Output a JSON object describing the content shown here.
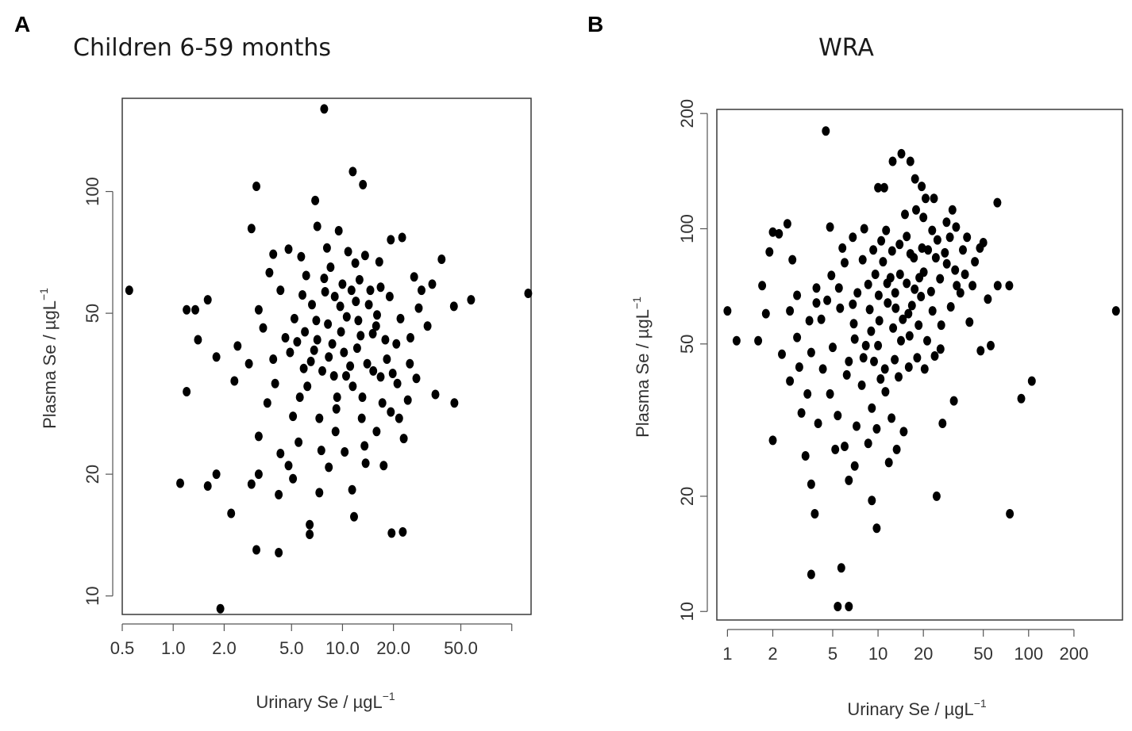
{
  "chart_data": [
    {
      "type": "scatter",
      "panel": "A",
      "title": "Children 6-59 months",
      "xlabel": "Urinary Se / µgL",
      "xlabel_sup": "−1",
      "ylabel": "Plasma Se / µgL",
      "ylabel_sup": "−1",
      "xscale": "log",
      "yscale": "log",
      "xlim": [
        0.5,
        130
      ],
      "ylim": [
        9,
        170
      ],
      "xticks": [
        0.5,
        1.0,
        2.0,
        5.0,
        10.0,
        20.0,
        50.0
      ],
      "xtick_labels": [
        "0.5",
        "1.0",
        "2.0",
        "5.0",
        "10.0",
        "20.0",
        "50.0"
      ],
      "yticks": [
        10,
        20,
        50,
        100
      ],
      "ytick_labels": [
        "10",
        "20",
        "50",
        "100"
      ],
      "grid": false,
      "points": [
        [
          0.55,
          57
        ],
        [
          125,
          56
        ],
        [
          7.8,
          160
        ],
        [
          11.5,
          112
        ],
        [
          13.2,
          104
        ],
        [
          3.1,
          103
        ],
        [
          6.9,
          95
        ],
        [
          2.9,
          81
        ],
        [
          7.1,
          82
        ],
        [
          9.5,
          80
        ],
        [
          19.3,
          76
        ],
        [
          22.5,
          77
        ],
        [
          38.5,
          68
        ],
        [
          1.6,
          54
        ],
        [
          1.2,
          51
        ],
        [
          1.35,
          51
        ],
        [
          57.5,
          54
        ],
        [
          45.5,
          52
        ],
        [
          1.4,
          43
        ],
        [
          1.8,
          39
        ],
        [
          1.2,
          32
        ],
        [
          1.1,
          19
        ],
        [
          1.6,
          18.7
        ],
        [
          1.8,
          20
        ],
        [
          2.2,
          16
        ],
        [
          1.9,
          9.3
        ],
        [
          3.1,
          13
        ],
        [
          4.2,
          12.8
        ],
        [
          4.2,
          17.8
        ],
        [
          6.4,
          15
        ],
        [
          6.4,
          14.2
        ],
        [
          7.3,
          18
        ],
        [
          11.7,
          15.7
        ],
        [
          19.5,
          14.3
        ],
        [
          22.7,
          14.4
        ],
        [
          45.8,
          30
        ],
        [
          35.4,
          31.5
        ],
        [
          5.2,
          48.5
        ],
        [
          7.1,
          43
        ],
        [
          9.8,
          45
        ],
        [
          8.3,
          39
        ],
        [
          10.6,
          49
        ],
        [
          12.2,
          41
        ],
        [
          5.9,
          36.5
        ],
        [
          15.1,
          44.5
        ],
        [
          6.6,
          52.5
        ],
        [
          11.1,
          37
        ],
        [
          8.9,
          35
        ],
        [
          14.3,
          52.5
        ],
        [
          17.9,
          43
        ],
        [
          4.6,
          43.5
        ],
        [
          7.9,
          56.5
        ],
        [
          10.0,
          59
        ],
        [
          12.6,
          60.5
        ],
        [
          9.3,
          31
        ],
        [
          5.6,
          31
        ],
        [
          16.8,
          34.8
        ],
        [
          3.4,
          46
        ],
        [
          3.9,
          38.5
        ],
        [
          4.3,
          57
        ],
        [
          6.1,
          62
        ],
        [
          8.5,
          65
        ],
        [
          11.9,
          66.5
        ],
        [
          14.6,
          57
        ],
        [
          19.0,
          55
        ],
        [
          22.0,
          48.5
        ],
        [
          25.2,
          43.5
        ],
        [
          28.2,
          51.5
        ],
        [
          31.8,
          46.5
        ],
        [
          25.0,
          37.5
        ],
        [
          19.8,
          35.5
        ],
        [
          17.2,
          30
        ],
        [
          13.0,
          27.5
        ],
        [
          9.1,
          25.5
        ],
        [
          7.3,
          27.5
        ],
        [
          5.1,
          27.8
        ],
        [
          3.6,
          30
        ],
        [
          2.8,
          37.5
        ],
        [
          2.4,
          41.5
        ],
        [
          3.2,
          24.8
        ],
        [
          4.3,
          22.5
        ],
        [
          5.5,
          24
        ],
        [
          7.5,
          22.9
        ],
        [
          10.3,
          22.7
        ],
        [
          13.5,
          23.5
        ],
        [
          15.9,
          25.5
        ],
        [
          21.6,
          27.5
        ],
        [
          2.3,
          34
        ],
        [
          4.0,
          33.5
        ],
        [
          6.8,
          40.5
        ],
        [
          9.7,
          52
        ],
        [
          12.4,
          48
        ],
        [
          15.8,
          46.5
        ],
        [
          20.8,
          42
        ],
        [
          8.2,
          47
        ],
        [
          6.0,
          45
        ],
        [
          3.2,
          51
        ],
        [
          5.7,
          69
        ],
        [
          4.8,
          72
        ],
        [
          3.9,
          70
        ],
        [
          8.1,
          72.5
        ],
        [
          10.8,
          71
        ],
        [
          13.6,
          69.5
        ],
        [
          16.5,
          67
        ],
        [
          16.8,
          58
        ],
        [
          26.5,
          61.5
        ],
        [
          29.3,
          57
        ],
        [
          33.9,
          59
        ],
        [
          4.9,
          40
        ],
        [
          7.6,
          36
        ],
        [
          11.5,
          33
        ],
        [
          14.0,
          37.5
        ],
        [
          9.2,
          29
        ],
        [
          5.8,
          55.5
        ],
        [
          3.7,
          63
        ],
        [
          7.8,
          61
        ],
        [
          11.3,
          57
        ],
        [
          13.1,
          31
        ],
        [
          15.2,
          36
        ],
        [
          18.3,
          38.5
        ],
        [
          21.1,
          33.5
        ],
        [
          24.3,
          30.5
        ],
        [
          27.3,
          34.5
        ],
        [
          19.3,
          28.5
        ],
        [
          23.0,
          24.5
        ],
        [
          17.5,
          21
        ],
        [
          13.7,
          21.3
        ],
        [
          11.4,
          18.3
        ],
        [
          8.3,
          20.8
        ],
        [
          5.1,
          19.5
        ],
        [
          4.8,
          21
        ],
        [
          3.2,
          20
        ],
        [
          2.9,
          18.9
        ],
        [
          6.2,
          33
        ],
        [
          7.0,
          48
        ],
        [
          8.7,
          42
        ],
        [
          10.2,
          40
        ],
        [
          12.8,
          44
        ],
        [
          5.4,
          42.5
        ],
        [
          9.0,
          55
        ],
        [
          6.5,
          38
        ],
        [
          12.0,
          53.5
        ],
        [
          16.0,
          49.5
        ],
        [
          10.5,
          35
        ]
      ]
    },
    {
      "type": "scatter",
      "panel": "B",
      "title": "WRA",
      "xlabel": "Urinary Se / µgL",
      "xlabel_sup": "−1",
      "ylabel": "Plasma Se / µgL",
      "ylabel_sup": "−1",
      "xscale": "log",
      "yscale": "log",
      "xlim": [
        0.85,
        420
      ],
      "ylim": [
        9.5,
        205
      ],
      "xticks": [
        1,
        2,
        5,
        10,
        20,
        50,
        100,
        200
      ],
      "xtick_labels": [
        "1",
        "2",
        "5",
        "10",
        "20",
        "50",
        "100",
        "200"
      ],
      "yticks": [
        10,
        20,
        50,
        100,
        200
      ],
      "ytick_labels": [
        "10",
        "20",
        "50",
        "100",
        "200"
      ],
      "grid": false,
      "points": [
        [
          1.0,
          61
        ],
        [
          1.15,
          51
        ],
        [
          1.6,
          51
        ],
        [
          1.7,
          71
        ],
        [
          1.8,
          60
        ],
        [
          1.9,
          87
        ],
        [
          2.0,
          98
        ],
        [
          2.2,
          97
        ],
        [
          2.5,
          103
        ],
        [
          2.7,
          83
        ],
        [
          2.6,
          61
        ],
        [
          2.0,
          28
        ],
        [
          3.3,
          25.5
        ],
        [
          3.6,
          21.5
        ],
        [
          3.8,
          18
        ],
        [
          3.6,
          12.5
        ],
        [
          4.5,
          180
        ],
        [
          4.8,
          101
        ],
        [
          5.4,
          10.3
        ],
        [
          6.4,
          10.3
        ],
        [
          5.7,
          13
        ],
        [
          6.4,
          22
        ],
        [
          9.1,
          19.5
        ],
        [
          9.8,
          16.5
        ],
        [
          10.0,
          128
        ],
        [
          11.0,
          128
        ],
        [
          12.5,
          150
        ],
        [
          14.3,
          157
        ],
        [
          16.4,
          150
        ],
        [
          17.6,
          135
        ],
        [
          19.5,
          129
        ],
        [
          20.7,
          120
        ],
        [
          23.5,
          120
        ],
        [
          31.2,
          112
        ],
        [
          50.0,
          92
        ],
        [
          62.0,
          117
        ],
        [
          74.4,
          71
        ],
        [
          75.0,
          18
        ],
        [
          89.3,
          36
        ],
        [
          105.0,
          40
        ],
        [
          380.0,
          61
        ],
        [
          26.8,
          31
        ],
        [
          24.5,
          20
        ],
        [
          31.9,
          35.5
        ],
        [
          48.0,
          48
        ],
        [
          53.6,
          65.5
        ],
        [
          56.0,
          49.5
        ],
        [
          62.3,
          71
        ],
        [
          40.5,
          57
        ],
        [
          35.2,
          68
        ],
        [
          44.0,
          82
        ],
        [
          3.9,
          70
        ],
        [
          5.6,
          62
        ],
        [
          6.9,
          56.5
        ],
        [
          8.3,
          49.5
        ],
        [
          9.4,
          45
        ],
        [
          10.2,
          57.5
        ],
        [
          11.6,
          64
        ],
        [
          13.0,
          68
        ],
        [
          12.1,
          74.5
        ],
        [
          14.0,
          76
        ],
        [
          15.5,
          72
        ],
        [
          16.8,
          63
        ],
        [
          18.6,
          56
        ],
        [
          21.2,
          51
        ],
        [
          20.4,
          43
        ],
        [
          23.8,
          46.5
        ],
        [
          26.3,
          56
        ],
        [
          30.4,
          62.5
        ],
        [
          33.3,
          71
        ],
        [
          36.6,
          88
        ],
        [
          30.0,
          95
        ],
        [
          24.2,
          84
        ],
        [
          19.6,
          89
        ],
        [
          16.4,
          86
        ],
        [
          10.5,
          93
        ],
        [
          7.9,
          83
        ],
        [
          6.0,
          81.5
        ],
        [
          4.9,
          75.5
        ],
        [
          4.2,
          58
        ],
        [
          5.0,
          49
        ],
        [
          4.3,
          43
        ],
        [
          4.8,
          37
        ],
        [
          6.2,
          41.5
        ],
        [
          7.8,
          39
        ],
        [
          9.1,
          34
        ],
        [
          11.2,
          37.5
        ],
        [
          13.7,
          41
        ],
        [
          12.3,
          32
        ],
        [
          14.8,
          29.5
        ],
        [
          11.8,
          24.5
        ],
        [
          8.6,
          27.5
        ],
        [
          7.2,
          30.5
        ],
        [
          5.4,
          32.5
        ],
        [
          3.4,
          37
        ],
        [
          3.0,
          43.5
        ],
        [
          2.6,
          40
        ],
        [
          2.3,
          47
        ],
        [
          2.9,
          52
        ],
        [
          3.5,
          57.5
        ],
        [
          3.9,
          64
        ],
        [
          2.9,
          67
        ],
        [
          7.3,
          68
        ],
        [
          8.6,
          71.5
        ],
        [
          9.6,
          76
        ],
        [
          10.8,
          82
        ],
        [
          12.4,
          87.5
        ],
        [
          13.9,
          91
        ],
        [
          15.5,
          95.5
        ],
        [
          17.3,
          84
        ],
        [
          20.1,
          77
        ],
        [
          22.5,
          68.5
        ],
        [
          25.8,
          74
        ],
        [
          28.6,
          81
        ],
        [
          8.8,
          61.5
        ],
        [
          10.1,
          67
        ],
        [
          11.5,
          72
        ],
        [
          13.1,
          62
        ],
        [
          14.6,
          58
        ],
        [
          9.0,
          54
        ],
        [
          7.0,
          51.5
        ],
        [
          6.4,
          45
        ],
        [
          8.0,
          46
        ],
        [
          10.0,
          49.5
        ],
        [
          12.6,
          55
        ],
        [
          15.9,
          60
        ],
        [
          19.3,
          66.5
        ],
        [
          23.0,
          61
        ],
        [
          26.0,
          48.5
        ],
        [
          18.2,
          46
        ],
        [
          16.0,
          43.5
        ],
        [
          11.1,
          43
        ],
        [
          6.8,
          63.5
        ],
        [
          5.5,
          70
        ],
        [
          4.6,
          65
        ],
        [
          9.3,
          88
        ],
        [
          11.3,
          99
        ],
        [
          8.1,
          100
        ],
        [
          6.8,
          95
        ],
        [
          5.8,
          89
        ],
        [
          3.6,
          47.5
        ],
        [
          3.1,
          33
        ],
        [
          4.0,
          31
        ],
        [
          6.0,
          27
        ],
        [
          7.0,
          24
        ],
        [
          5.2,
          26.5
        ],
        [
          9.8,
          30
        ],
        [
          13.3,
          26.5
        ],
        [
          10.4,
          40.5
        ],
        [
          12.9,
          45.5
        ],
        [
          14.2,
          51
        ],
        [
          16.2,
          52.5
        ],
        [
          17.5,
          69.5
        ],
        [
          18.8,
          74.5
        ],
        [
          21.5,
          88
        ],
        [
          24.8,
          93.5
        ],
        [
          27.8,
          86.5
        ],
        [
          32.5,
          78
        ],
        [
          37.8,
          76
        ],
        [
          42.4,
          71
        ],
        [
          47.5,
          89
        ],
        [
          39.0,
          95
        ],
        [
          33.0,
          101
        ],
        [
          28.5,
          104
        ],
        [
          22.9,
          99
        ],
        [
          20.0,
          107
        ],
        [
          17.9,
          112
        ],
        [
          15.1,
          109
        ]
      ]
    }
  ]
}
